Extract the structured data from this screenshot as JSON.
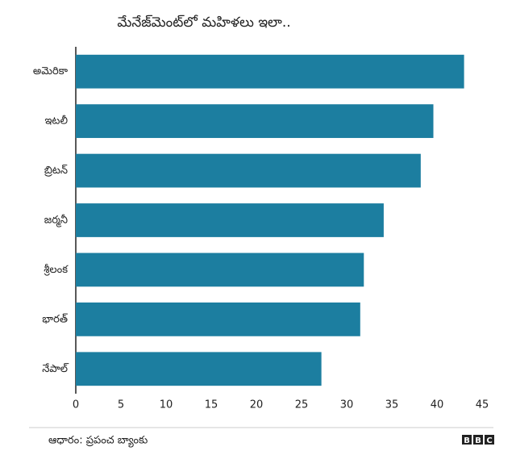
{
  "chart_data": {
    "type": "bar",
    "orientation": "horizontal",
    "title": "మేనేజ్‌మెంట్‌లో మహిళలు ఇలా..",
    "categories": [
      "అమెరికా",
      "ఇటలీ",
      "బ్రిటన్",
      "జర్మనీ",
      "శ్రీలంక",
      "భారత్",
      "నేపాల్"
    ],
    "values": [
      43,
      39.6,
      38.2,
      34.1,
      31.9,
      31.5,
      27.2
    ],
    "color": "#1c7ea0",
    "xlim": [
      0,
      45
    ],
    "xticks": [
      0,
      5,
      10,
      15,
      20,
      25,
      30,
      35,
      40,
      45
    ],
    "grid": false
  },
  "footer": {
    "source": "ఆధారం: ప్రపంచ బ్యాంకు",
    "logo": [
      "B",
      "B",
      "C"
    ]
  }
}
